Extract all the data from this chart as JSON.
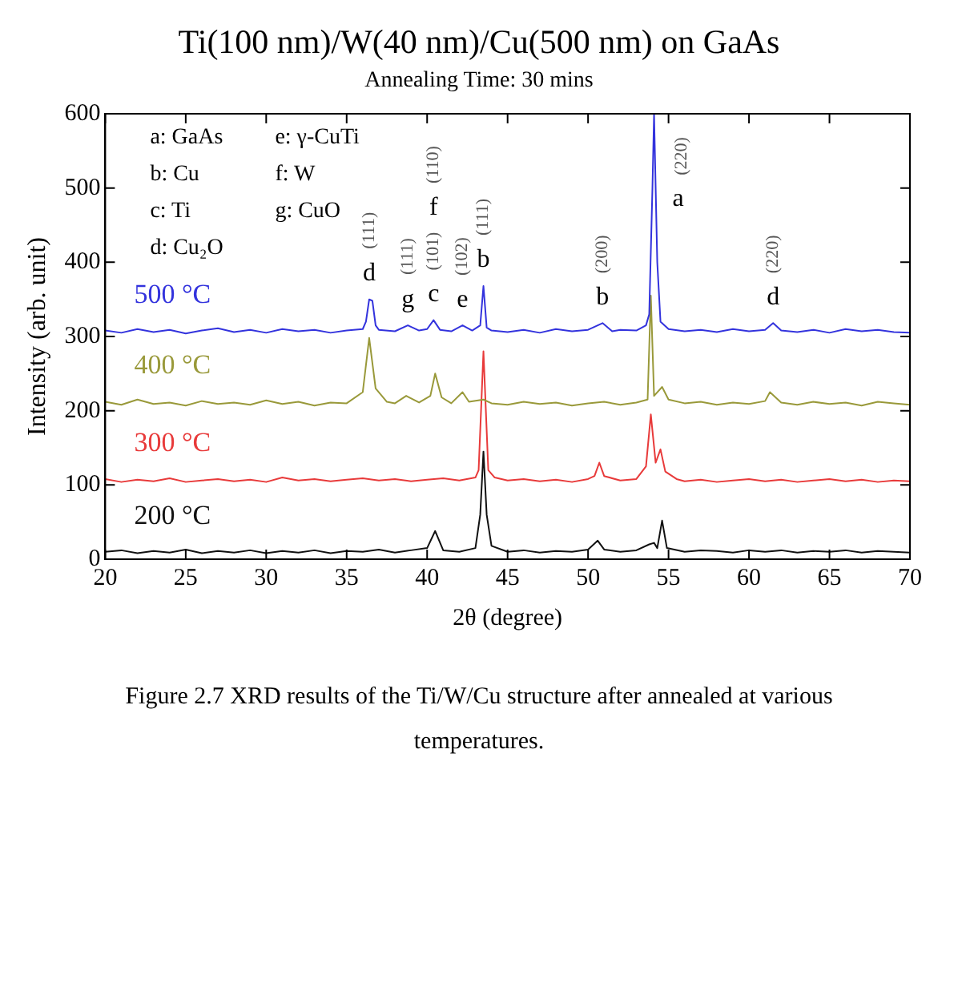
{
  "chart_data": {
    "type": "line",
    "title": "Ti(100 nm)/W(40 nm)/Cu(500 nm) on GaAs",
    "subtitle": "Annealing Time: 30 mins",
    "xlabel": "2θ (degree)",
    "ylabel": "Intensity (arb. unit)",
    "xlim": [
      20,
      70
    ],
    "xticks": [
      20,
      25,
      30,
      35,
      40,
      45,
      50,
      55,
      60,
      65,
      70
    ],
    "ylim": [
      0,
      600
    ],
    "yticks": [
      0,
      100,
      200,
      300,
      400,
      500,
      600
    ],
    "grid": false,
    "legend": false,
    "marker": "none",
    "line_style": "solid",
    "series": [
      {
        "name": "500 °C",
        "color": "#3333dd",
        "x": [
          20,
          21,
          22,
          23,
          24,
          25,
          26,
          27,
          28,
          29,
          30,
          31,
          32,
          33,
          34,
          35,
          36,
          36.2,
          36.4,
          36.6,
          36.8,
          37,
          38,
          38.8,
          39.5,
          40,
          40.4,
          40.8,
          41.5,
          42.2,
          42.8,
          43.3,
          43.5,
          43.7,
          44,
          45,
          46,
          47,
          48,
          49,
          50,
          50.9,
          51.5,
          52,
          53,
          53.6,
          53.8,
          54.0,
          54.1,
          54.3,
          54.5,
          55,
          56,
          57,
          58,
          59,
          60,
          61,
          61.5,
          62,
          63,
          64,
          65,
          66,
          67,
          68,
          69,
          70
        ],
        "values": [
          308,
          305,
          310,
          306,
          309,
          304,
          308,
          311,
          306,
          309,
          305,
          310,
          307,
          309,
          305,
          308,
          310,
          320,
          350,
          348,
          315,
          309,
          307,
          315,
          308,
          310,
          322,
          309,
          307,
          315,
          308,
          315,
          368,
          312,
          308,
          306,
          309,
          305,
          310,
          307,
          309,
          318,
          307,
          309,
          308,
          315,
          330,
          500,
          600,
          400,
          320,
          310,
          307,
          309,
          306,
          310,
          307,
          309,
          318,
          308,
          306,
          309,
          305,
          310,
          307,
          309,
          306,
          305
        ]
      },
      {
        "name": "400 °C",
        "color": "#99993a",
        "x": [
          20,
          21,
          22,
          23,
          24,
          25,
          26,
          27,
          28,
          29,
          30,
          31,
          32,
          33,
          34,
          35,
          36,
          36.4,
          36.8,
          37.5,
          38,
          38.7,
          39.5,
          40.2,
          40.5,
          40.9,
          41.5,
          42.2,
          42.6,
          43.5,
          44,
          45,
          46,
          47,
          48,
          49,
          50,
          51,
          52,
          53,
          53.7,
          53.9,
          54.1,
          54.6,
          55,
          56,
          57,
          58,
          59,
          60,
          61,
          61.3,
          62,
          63,
          64,
          65,
          66,
          67,
          68,
          69,
          70
        ],
        "values": [
          212,
          208,
          215,
          209,
          211,
          207,
          213,
          209,
          211,
          208,
          214,
          209,
          212,
          207,
          211,
          210,
          225,
          298,
          230,
          212,
          210,
          220,
          211,
          220,
          250,
          218,
          210,
          225,
          212,
          215,
          210,
          208,
          212,
          209,
          211,
          207,
          210,
          212,
          208,
          211,
          215,
          355,
          220,
          232,
          215,
          210,
          212,
          208,
          211,
          209,
          213,
          225,
          211,
          208,
          212,
          209,
          211,
          207,
          212,
          210,
          208
        ]
      },
      {
        "name": "300 °C",
        "color": "#e83a3a",
        "x": [
          20,
          21,
          22,
          23,
          24,
          25,
          26,
          27,
          28,
          29,
          30,
          31,
          32,
          33,
          34,
          35,
          36,
          37,
          38,
          39,
          40,
          41,
          42,
          43,
          43.2,
          43.5,
          43.8,
          44.2,
          45,
          46,
          47,
          48,
          49,
          50,
          50.4,
          50.7,
          51,
          52,
          53,
          53.6,
          53.9,
          54.2,
          54.5,
          54.8,
          55.5,
          56,
          57,
          58,
          59,
          60,
          61,
          62,
          63,
          64,
          65,
          66,
          67,
          68,
          69,
          70
        ],
        "values": [
          108,
          104,
          107,
          105,
          109,
          104,
          106,
          108,
          105,
          107,
          104,
          110,
          106,
          108,
          105,
          107,
          109,
          106,
          108,
          105,
          107,
          109,
          106,
          110,
          120,
          280,
          120,
          110,
          106,
          108,
          105,
          107,
          104,
          108,
          112,
          130,
          112,
          106,
          108,
          125,
          195,
          130,
          148,
          118,
          108,
          105,
          107,
          104,
          106,
          108,
          105,
          107,
          104,
          106,
          108,
          105,
          107,
          104,
          106,
          105
        ]
      },
      {
        "name": "200 °C",
        "color": "#111111",
        "x": [
          20,
          21,
          22,
          23,
          24,
          25,
          26,
          27,
          28,
          29,
          30,
          31,
          32,
          33,
          34,
          35,
          36,
          37,
          38,
          39,
          40,
          40.5,
          41,
          42,
          43,
          43.3,
          43.5,
          43.7,
          44,
          45,
          46,
          47,
          48,
          49,
          50,
          50.6,
          51,
          52,
          53,
          53.8,
          54.1,
          54.3,
          54.6,
          54.9,
          56,
          57,
          58,
          59,
          60,
          61,
          62,
          63,
          64,
          65,
          66,
          67,
          68,
          69,
          70
        ],
        "values": [
          10,
          12,
          8,
          11,
          9,
          13,
          8,
          11,
          9,
          12,
          8,
          11,
          9,
          12,
          8,
          11,
          10,
          13,
          9,
          12,
          15,
          38,
          12,
          10,
          15,
          60,
          145,
          60,
          18,
          10,
          12,
          9,
          11,
          10,
          13,
          25,
          13,
          10,
          12,
          20,
          22,
          15,
          52,
          15,
          10,
          12,
          11,
          9,
          12,
          10,
          12,
          9,
          11,
          10,
          12,
          9,
          11,
          10,
          9
        ]
      }
    ],
    "annotations": [
      "a: GaAs",
      "b: Cu",
      "c: Ti",
      "d: Cu₂O",
      "e: γ-CuTi",
      "f: W",
      "g: CuO",
      {
        "text": "a",
        "x": 54.25,
        "y": 450
      },
      "(220)",
      {
        "text": "b",
        "x": 43.5,
        "y": 368
      },
      "(111)",
      {
        "text": "e",
        "x": 42.2,
        "y": 315
      },
      "(102)",
      {
        "text": "c",
        "x": 40.4,
        "y": 322
      },
      "(101)",
      "f",
      "(110)",
      {
        "text": "g",
        "x": 38.8,
        "y": 315
      },
      "(111)",
      {
        "text": "d",
        "x": 36.4,
        "y": 350
      },
      "(111)",
      {
        "text": "b",
        "x": 50.9,
        "y": 318
      },
      "(200)",
      {
        "text": "d",
        "x": 61.5,
        "y": 318
      },
      "(220)",
      "Figure 2.7 XRD results of the Ti/W/Cu structure after annealed at various temperatures."
    ]
  }
}
